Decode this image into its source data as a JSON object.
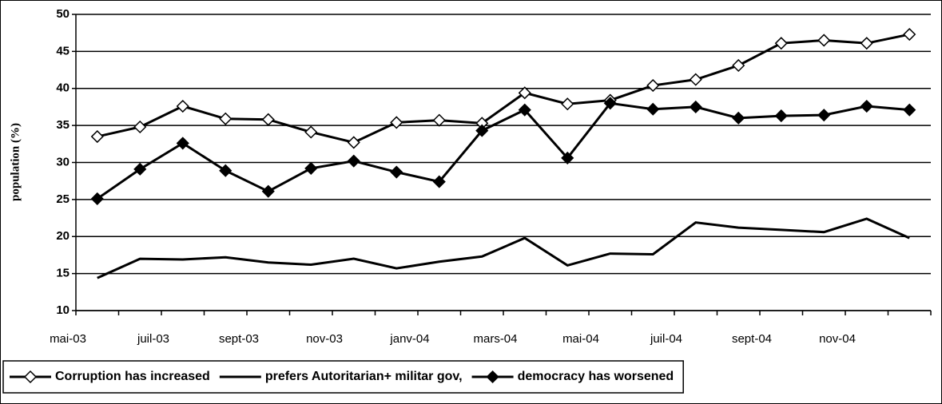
{
  "chart_data": {
    "type": "line",
    "y_label": "population (%)",
    "categories": [
      "mai-03",
      null,
      "juil-03",
      null,
      "sept-03",
      null,
      "nov-03",
      null,
      "janv-04",
      null,
      "mars-04",
      null,
      "mai-04",
      null,
      "juil-04",
      null,
      "sept-04",
      null,
      "nov-04",
      null
    ],
    "series": [
      {
        "name": "Corruption has increased",
        "color": "#000000",
        "marker": "open-diamond",
        "values": [
          33.5,
          34.8,
          37.6,
          35.9,
          35.8,
          34.1,
          32.7,
          35.4,
          35.7,
          35.3,
          39.4,
          37.9,
          38.4,
          40.4,
          41.2,
          43.1,
          46.1,
          46.5,
          46.1,
          47.3
        ]
      },
      {
        "name": "prefers Autoritarian+ militar gov,",
        "color": "#000000",
        "marker": "none",
        "values": [
          14.4,
          17.0,
          16.9,
          17.2,
          16.5,
          16.2,
          17.0,
          15.7,
          16.6,
          17.3,
          19.8,
          16.1,
          17.7,
          17.6,
          21.9,
          21.2,
          20.9,
          20.6,
          22.4,
          19.8
        ]
      },
      {
        "name": "democracy has worsened",
        "color": "#000000",
        "marker": "filled-diamond",
        "values": [
          25.1,
          29.1,
          32.6,
          28.9,
          26.1,
          29.2,
          30.2,
          28.7,
          27.4,
          34.3,
          37.1,
          30.6,
          38.0,
          37.2,
          37.5,
          36.0,
          36.3,
          36.4,
          37.6,
          37.1
        ]
      }
    ],
    "ylim": [
      10,
      50
    ],
    "yticks": [
      10,
      15,
      20,
      25,
      30,
      35,
      40,
      45,
      50
    ],
    "grid": true,
    "legend": "bottom"
  }
}
